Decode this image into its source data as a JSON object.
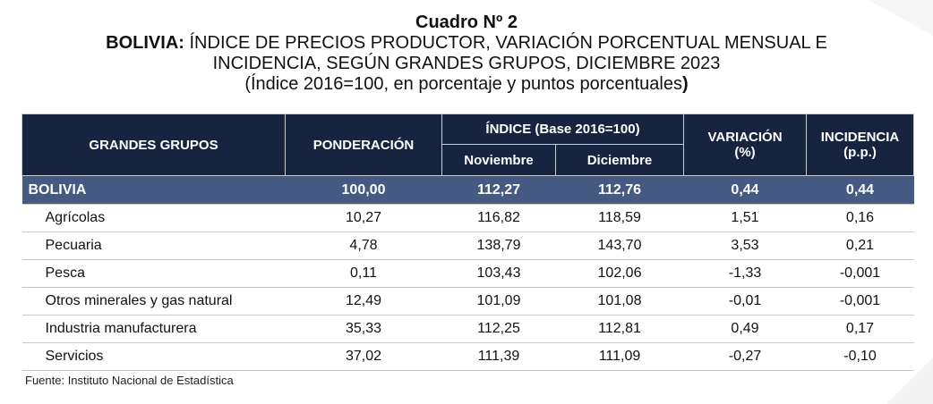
{
  "header": {
    "number": "Cuadro Nº 2",
    "title_bold": "BOLIVIA:",
    "title_rest": " ÍNDICE DE PRECIOS PRODUCTOR, VARIACIÓN PORCENTUAL MENSUAL E",
    "title_line2": "INCIDENCIA, SEGÚN GRANDES GRUPOS, DICIEMBRE 2023",
    "subtitle_open": "(Índice 2016=100, en porcentaje y puntos porcentuales",
    "subtitle_close": ")"
  },
  "table": {
    "col_groups": "GRANDES GRUPOS",
    "col_weight": "PONDERACIÓN",
    "col_index": "ÍNDICE (Base 2016=100)",
    "col_nov": "Noviembre",
    "col_dec": "Diciembre",
    "col_var": "VARIACIÓN",
    "col_var_unit": "(%)",
    "col_inc": "INCIDENCIA",
    "col_inc_unit": "(p.p.)",
    "total": {
      "name": "BOLIVIA",
      "weight": "100,00",
      "nov": "112,27",
      "dec": "112,76",
      "var": "0,44",
      "inc": "0,44"
    },
    "rows": [
      {
        "name": "Agrícolas",
        "weight": "10,27",
        "nov": "116,82",
        "dec": "118,59",
        "var": "1,51",
        "inc": "0,16"
      },
      {
        "name": "Pecuaria",
        "weight": "4,78",
        "nov": "138,79",
        "dec": "143,70",
        "var": "3,53",
        "inc": "0,21"
      },
      {
        "name": "Pesca",
        "weight": "0,11",
        "nov": "103,43",
        "dec": "102,06",
        "var": "-1,33",
        "inc": "-0,001"
      },
      {
        "name": "Otros minerales y gas natural",
        "weight": "12,49",
        "nov": "101,09",
        "dec": "101,08",
        "var": "-0,01",
        "inc": "-0,001"
      },
      {
        "name": "Industria manufacturera",
        "weight": "35,33",
        "nov": "112,25",
        "dec": "112,81",
        "var": "0,49",
        "inc": "0,17"
      },
      {
        "name": "Servicios",
        "weight": "37,02",
        "nov": "111,39",
        "dec": "111,09",
        "var": "-0,27",
        "inc": "-0,10"
      }
    ]
  },
  "source": "Fuente: Instituto Nacional de Estadística",
  "colors": {
    "header_bg": "#17243f",
    "total_bg": "#445a82"
  }
}
